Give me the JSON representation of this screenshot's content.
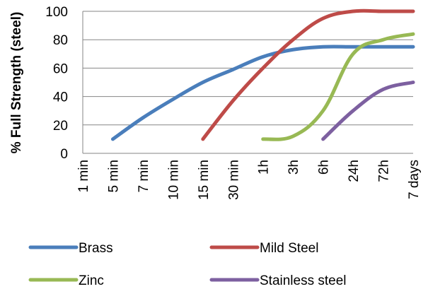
{
  "chart_data": {
    "type": "line",
    "ylabel": "% Full Strength (steel)",
    "xlabel": "",
    "ylim": [
      0,
      100
    ],
    "yticks": [
      0,
      20,
      40,
      60,
      80,
      100
    ],
    "categories": [
      "1 min",
      "5 min",
      "7 min",
      "10 min",
      "15 min",
      "30 min",
      "1h",
      "3h",
      "6h",
      "24h",
      "72h",
      "7 days"
    ],
    "grid": "horizontal",
    "legend_position": "bottom",
    "series": [
      {
        "name": "Brass",
        "color": "#4a7ebb",
        "values": [
          null,
          10,
          25,
          38,
          50,
          59,
          68,
          73,
          75,
          75,
          75,
          75
        ]
      },
      {
        "name": "Mild Steel",
        "color": "#be4b48",
        "values": [
          null,
          null,
          null,
          null,
          10,
          37,
          60,
          80,
          95,
          100,
          100,
          100
        ]
      },
      {
        "name": "Zinc",
        "color": "#98b954",
        "values": [
          null,
          null,
          null,
          null,
          null,
          null,
          10,
          12,
          30,
          70,
          80,
          84
        ]
      },
      {
        "name": "Stainless steel",
        "color": "#7d60a0",
        "values": [
          null,
          null,
          null,
          null,
          null,
          null,
          null,
          null,
          10,
          30,
          45,
          50
        ]
      }
    ]
  }
}
